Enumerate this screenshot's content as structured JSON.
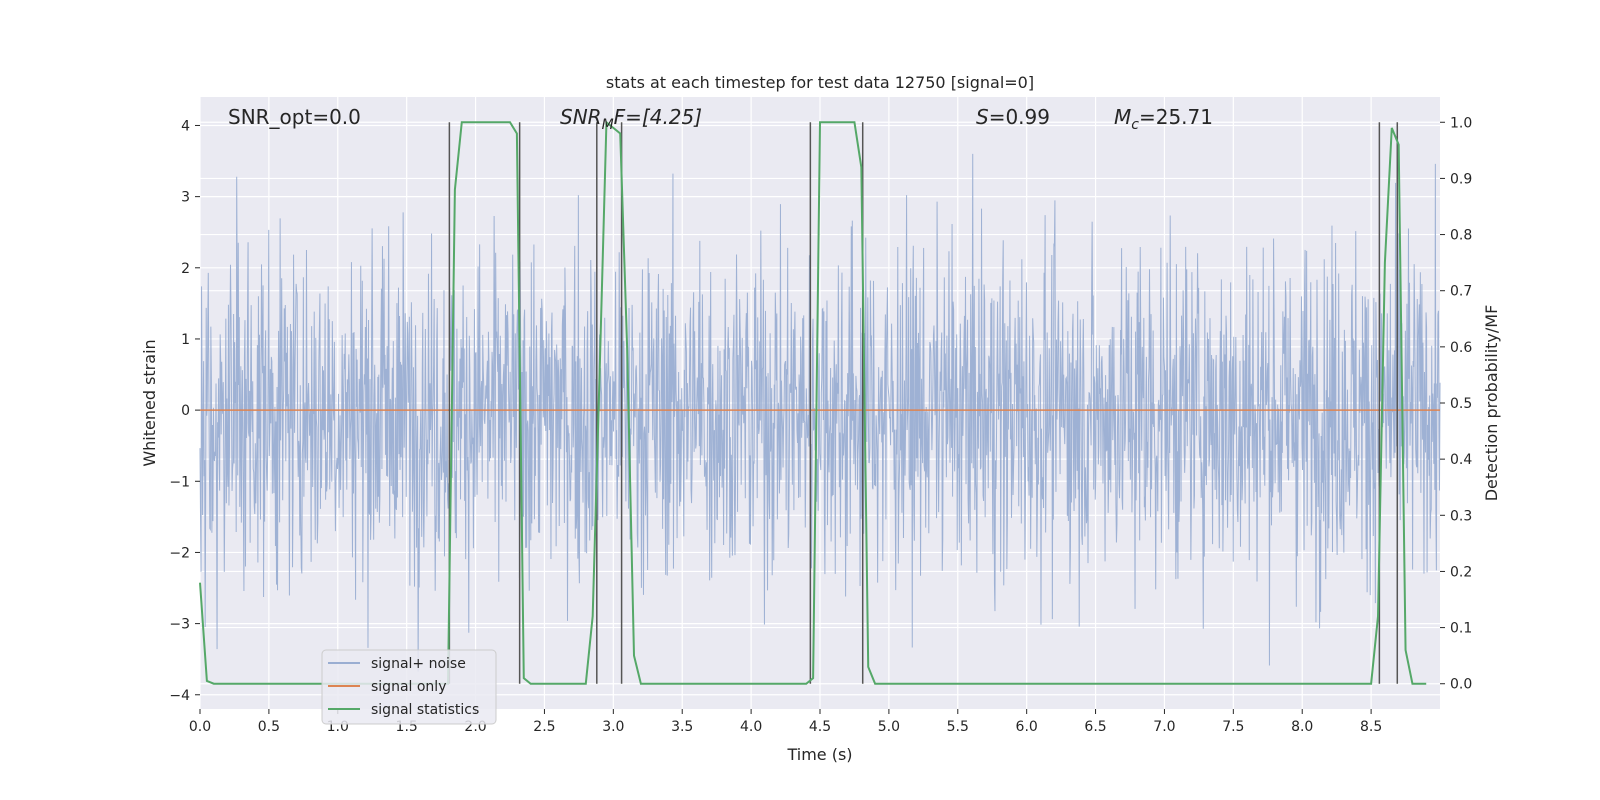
{
  "chart_data": {
    "type": "line",
    "title": "stats at each timestep for test data 12750 [signal=0]",
    "xlabel": "Time (s)",
    "ylabel": "Whitened strain",
    "ylabel_right": "Detection probability/MF",
    "xlim": [
      0.0,
      9.0
    ],
    "ylim": [
      -4.2,
      4.4
    ],
    "ylim_right": [
      -0.045,
      1.045
    ],
    "x_ticks": [
      "0.0",
      "0.5",
      "1.0",
      "1.5",
      "2.0",
      "2.5",
      "3.0",
      "3.5",
      "4.0",
      "4.5",
      "5.0",
      "5.5",
      "6.0",
      "6.5",
      "7.0",
      "7.5",
      "8.0",
      "8.5"
    ],
    "y_ticks": [
      "−4",
      "−3",
      "−2",
      "−1",
      "0",
      "1",
      "2",
      "3",
      "4"
    ],
    "y_ticks_right": [
      "0.0",
      "0.1",
      "0.2",
      "0.3",
      "0.4",
      "0.5",
      "0.6",
      "0.7",
      "0.8",
      "0.9",
      "1.0"
    ],
    "grid": true,
    "legend_position": "lower-left",
    "annotations": {
      "snr_opt": "SNR_opt=0.0",
      "snr_mf": "SNR",
      "snr_mf_sub": "M",
      "snr_mf_rest": "F=[4.25]",
      "s_label": "S",
      "s_value": "=0.99",
      "mc_label": "M",
      "mc_sub": "c",
      "mc_value": "=25.71"
    },
    "series": [
      {
        "name": "signal+ noise",
        "color": "#9aaed2",
        "description_range": [
          -3.7,
          3.6
        ],
        "noise_sigma": 1.0
      },
      {
        "name": "signal only",
        "color": "#dd8452",
        "x": [
          0.0,
          9.0
        ],
        "y": [
          0.0,
          0.0
        ]
      },
      {
        "name": "signal statistics",
        "color": "#55a868",
        "x": [
          0.0,
          0.05,
          0.1,
          0.15,
          1.8,
          1.85,
          1.9,
          2.25,
          2.3,
          2.35,
          2.4,
          2.8,
          2.85,
          2.9,
          2.95,
          3.0,
          3.05,
          3.1,
          3.15,
          3.2,
          3.25,
          4.4,
          4.45,
          4.5,
          4.75,
          4.8,
          4.85,
          4.9,
          8.5,
          8.55,
          8.6,
          8.65,
          8.7,
          8.75,
          8.8,
          8.9
        ],
        "y": [
          0.18,
          0.005,
          0.0,
          0.0,
          0.0,
          0.88,
          1.0,
          1.0,
          0.98,
          0.01,
          0.0,
          0.0,
          0.12,
          0.55,
          1.0,
          0.99,
          0.98,
          0.6,
          0.05,
          0.0,
          0.0,
          0.0,
          0.01,
          1.0,
          1.0,
          0.92,
          0.03,
          0.0,
          0.0,
          0.12,
          0.75,
          0.99,
          0.96,
          0.06,
          0.0,
          0.0
        ]
      }
    ],
    "vertical_lines": [
      1.81,
      2.32,
      2.88,
      3.06,
      4.43,
      4.81,
      8.56,
      8.69
    ],
    "vertical_line_color": "#555555"
  }
}
